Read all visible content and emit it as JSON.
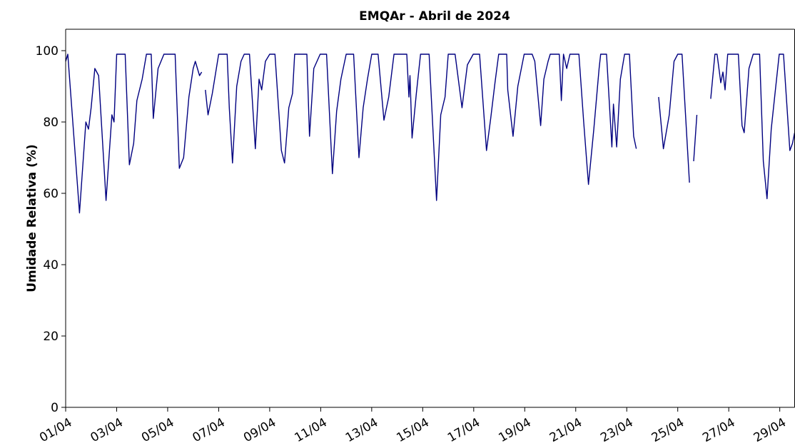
{
  "chart_data": {
    "type": "line",
    "title": "EMQAr - Abril de  2024",
    "y_label": "Umidade Relativa (%)",
    "color": "#000080",
    "xlim": [
      0,
      686
    ],
    "xticks": [
      {
        "value": 0,
        "label": "01/04"
      },
      {
        "value": 48,
        "label": "03/04"
      },
      {
        "value": 96,
        "label": "05/04"
      },
      {
        "value": 144,
        "label": "07/04"
      },
      {
        "value": 192,
        "label": "09/04"
      },
      {
        "value": 240,
        "label": "11/04"
      },
      {
        "value": 288,
        "label": "13/04"
      },
      {
        "value": 336,
        "label": "15/04"
      },
      {
        "value": 384,
        "label": "17/04"
      },
      {
        "value": 432,
        "label": "19/04"
      },
      {
        "value": 480,
        "label": "21/04"
      },
      {
        "value": 528,
        "label": "23/04"
      },
      {
        "value": 576,
        "label": "25/04"
      },
      {
        "value": 624,
        "label": "27/04"
      },
      {
        "value": 672,
        "label": "29/04"
      }
    ],
    "ylim": [
      0,
      106
    ],
    "yticks": [
      0,
      20,
      40,
      60,
      80,
      100
    ],
    "series": [
      {
        "name": "Umidade Relativa",
        "color": "#000080",
        "x": [
          0,
          2,
          13,
          19,
          21.5,
          24,
          27.5,
          31,
          38,
          43.5,
          45.5,
          48,
          56,
          60,
          64,
          67,
          72,
          76,
          80.5,
          82.5,
          87,
          92.5,
          96,
          103,
          107,
          111,
          116,
          120,
          122,
          126,
          128,
          130,
          131.5,
          134,
          138,
          144,
          152,
          154,
          157,
          161,
          165,
          168,
          173,
          178.5,
          182,
          184.5,
          188,
          192,
          197,
          203,
          206,
          210,
          213.5,
          215.5,
          227,
          229.5,
          233.5,
          239.5,
          245.5,
          251,
          255,
          259,
          264,
          271,
          276,
          280,
          284,
          288,
          294,
          299.5,
          304,
          309,
          311,
          321,
          323,
          324,
          326,
          330,
          334,
          342,
          349,
          353,
          357,
          360,
          366.5,
          373,
          378,
          383.5,
          389.5,
          396,
          400,
          404,
          407.5,
          415,
          416,
          421,
          425.5,
          431.5,
          439,
          441.5,
          447,
          450,
          454,
          456,
          464.5,
          466.5,
          468.5,
          471.5,
          474.5,
          479,
          483,
          487.5,
          492,
          497,
          502,
          503.5,
          509,
          514,
          515.5,
          518.5,
          522,
          526,
          530.5,
          534.5,
          537,
          547,
          558,
          562.5,
          568,
          572.5,
          576,
          580,
          587,
          589,
          591,
          594,
          600,
          607,
          611,
          613,
          616.5,
          618.5,
          620.5,
          623,
          633,
          636.5,
          638.5,
          643,
          647,
          653,
          656.5,
          660,
          664,
          667.5,
          671.5,
          675.5,
          681.5,
          684,
          686
        ],
        "values": [
          97,
          99,
          54.5,
          80,
          78,
          84,
          95,
          93,
          58,
          82,
          80,
          99,
          99,
          68,
          74,
          86,
          92,
          99,
          99,
          81,
          95,
          99,
          99,
          99,
          67,
          70,
          87,
          95,
          97,
          93,
          94,
          null,
          89,
          82,
          88,
          99,
          99,
          84,
          68.5,
          90,
          97,
          99,
          99,
          72.5,
          92,
          89,
          97,
          99,
          99,
          72,
          68.5,
          84,
          88,
          99,
          99,
          76,
          95,
          99,
          99,
          65.5,
          83,
          92,
          99,
          99,
          70,
          84,
          92,
          99,
          99,
          80.5,
          87,
          99,
          99,
          99,
          87,
          93,
          75.5,
          88,
          99,
          99,
          58,
          82,
          87,
          99,
          99,
          84,
          96,
          99,
          99,
          72,
          81,
          91,
          99,
          99,
          89,
          76,
          90,
          99,
          99,
          97,
          79,
          92,
          97,
          99,
          99,
          86,
          99,
          95,
          99,
          99,
          99,
          80,
          62.5,
          78,
          95,
          99,
          99,
          73,
          85,
          73,
          92,
          99,
          99,
          76,
          72.5,
          null,
          87,
          72.5,
          82,
          97,
          99,
          99,
          63,
          null,
          69,
          82,
          null,
          86.5,
          99,
          99,
          91,
          94,
          89,
          99,
          99,
          79,
          77,
          95,
          99,
          99,
          69,
          58.5,
          78,
          88,
          99,
          99,
          72,
          74,
          77
        ]
      }
    ]
  }
}
